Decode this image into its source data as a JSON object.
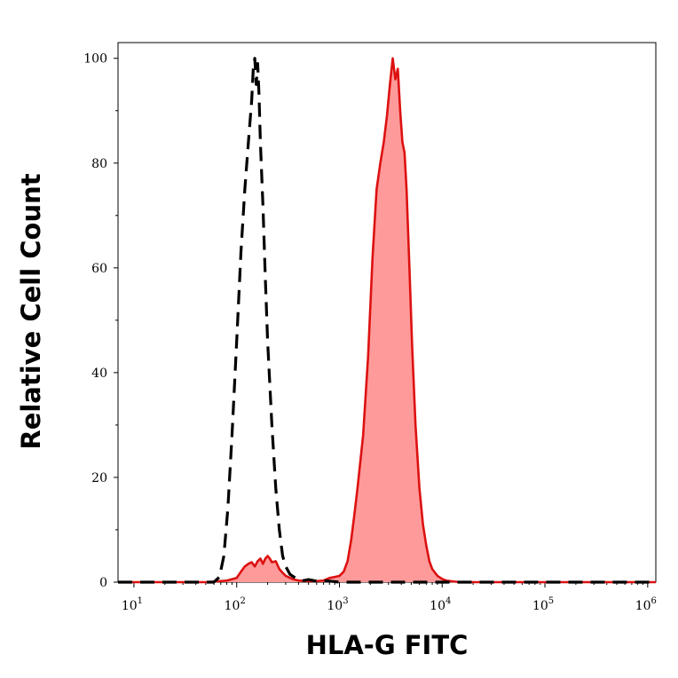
{
  "chart_data": {
    "type": "area",
    "title": "",
    "xlabel": "HLA-G FITC",
    "ylabel": "Relative Cell Count",
    "x_scale": "log",
    "xlim": [
      7,
      1200000
    ],
    "ylim": [
      0,
      103
    ],
    "grid": false,
    "legend": "none",
    "y_ticks": [
      0,
      20,
      40,
      60,
      80,
      100
    ],
    "y_tick_labels": [
      "0",
      "20",
      "40",
      "60",
      "80",
      "100"
    ],
    "x_ticks": [
      10,
      100,
      1000,
      10000,
      100000,
      1000000
    ],
    "x_tick_labels": [
      {
        "base": "10",
        "exp": "1"
      },
      {
        "base": "10",
        "exp": "2"
      },
      {
        "base": "10",
        "exp": "3"
      },
      {
        "base": "10",
        "exp": "4"
      },
      {
        "base": "10",
        "exp": "5"
      },
      {
        "base": "10",
        "exp": "6"
      }
    ],
    "series": [
      {
        "style": "dashed",
        "color": "#000000",
        "fill": "none",
        "x": [
          7,
          40,
          60,
          68,
          75,
          82,
          90,
          100,
          110,
          120,
          130,
          140,
          145,
          150,
          155,
          160,
          165,
          170,
          180,
          190,
          200,
          220,
          240,
          260,
          280,
          300,
          330,
          360,
          400,
          450,
          500,
          600,
          700,
          800,
          1000,
          2000,
          5000,
          10000,
          100000,
          1200000
        ],
        "y": [
          0,
          0,
          0,
          1,
          5,
          14,
          28,
          46,
          63,
          75,
          84,
          92,
          98,
          100,
          95,
          99,
          93,
          84,
          72,
          58,
          46,
          30,
          18,
          10,
          5,
          3,
          1.5,
          1,
          0.5,
          0.3,
          0.5,
          0.2,
          0.3,
          0.2,
          0,
          0,
          0,
          0,
          0,
          0
        ]
      },
      {
        "style": "solid",
        "color": "#dd1111",
        "fill": "#ff9a9a",
        "x": [
          7,
          50,
          80,
          100,
          110,
          120,
          130,
          140,
          150,
          160,
          170,
          180,
          190,
          200,
          210,
          220,
          240,
          260,
          280,
          300,
          350,
          400,
          500,
          600,
          700,
          800,
          900,
          1000,
          1100,
          1200,
          1300,
          1400,
          1500,
          1700,
          1900,
          2100,
          2300,
          2500,
          2700,
          2900,
          3100,
          3300,
          3500,
          3700,
          3900,
          4100,
          4300,
          4500,
          4800,
          5100,
          5500,
          6000,
          6500,
          7000,
          7500,
          8000,
          9000,
          10000,
          11000,
          12000,
          15000,
          30000,
          100000,
          1000000,
          1200000
        ],
        "y": [
          0,
          0,
          0.3,
          0.8,
          2,
          3,
          3.5,
          3.8,
          3,
          4,
          4.5,
          3.5,
          4.5,
          5,
          4.5,
          3.8,
          4,
          2.5,
          1.8,
          1.2,
          0.6,
          0.3,
          0.2,
          0.2,
          0.3,
          0.8,
          1,
          1.2,
          2,
          4,
          8,
          13,
          18,
          28,
          43,
          62,
          75,
          80,
          84,
          89,
          95,
          100,
          96,
          98,
          90,
          84,
          82,
          75,
          60,
          45,
          30,
          18,
          11,
          7,
          4,
          2.5,
          1.2,
          0.6,
          0.3,
          0.2,
          0,
          0,
          0,
          0,
          0
        ]
      }
    ]
  }
}
